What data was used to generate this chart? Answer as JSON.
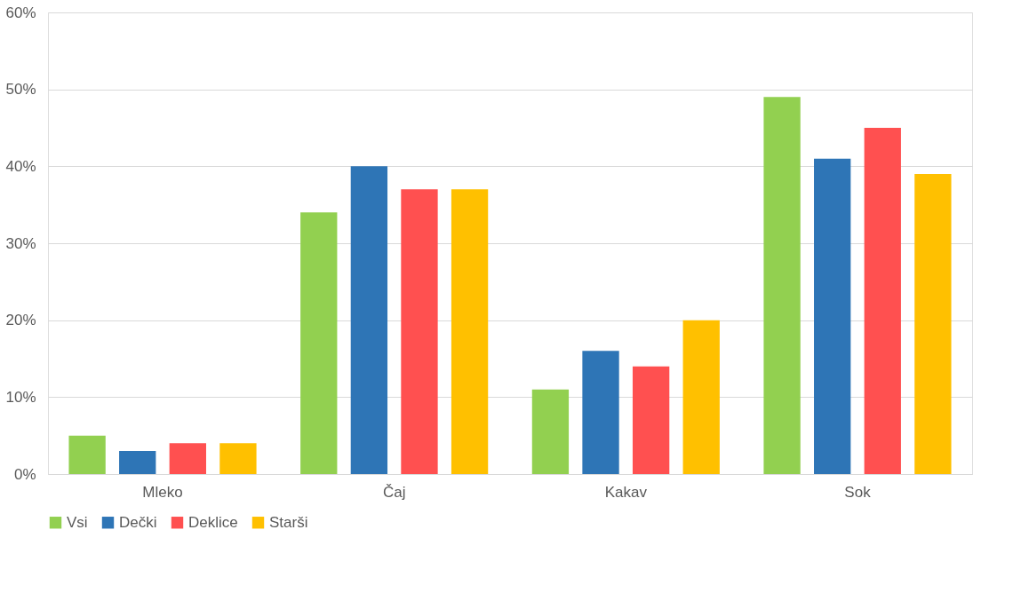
{
  "chart_data": {
    "type": "bar",
    "categories": [
      "Mleko",
      "Čaj",
      "Kakav",
      "Sok"
    ],
    "series": [
      {
        "name": "Vsi",
        "color": "#92d050",
        "values": [
          5,
          34,
          11,
          49
        ]
      },
      {
        "name": "Dečki",
        "color": "#2e75b6",
        "values": [
          3,
          40,
          16,
          41
        ]
      },
      {
        "name": "Deklice",
        "color": "#ff5050",
        "values": [
          4,
          37,
          14,
          45
        ]
      },
      {
        "name": "Starši",
        "color": "#ffc000",
        "values": [
          4,
          37,
          20,
          39
        ]
      }
    ],
    "ylim": [
      0,
      60
    ],
    "yticks": [
      {
        "value": 0,
        "label": "0%"
      },
      {
        "value": 10,
        "label": "10%"
      },
      {
        "value": 20,
        "label": "20%"
      },
      {
        "value": 30,
        "label": "30%"
      },
      {
        "value": 40,
        "label": "40%"
      },
      {
        "value": 50,
        "label": "50%"
      },
      {
        "value": 60,
        "label": "60%"
      }
    ],
    "grid": "y",
    "legend": "bottom"
  }
}
